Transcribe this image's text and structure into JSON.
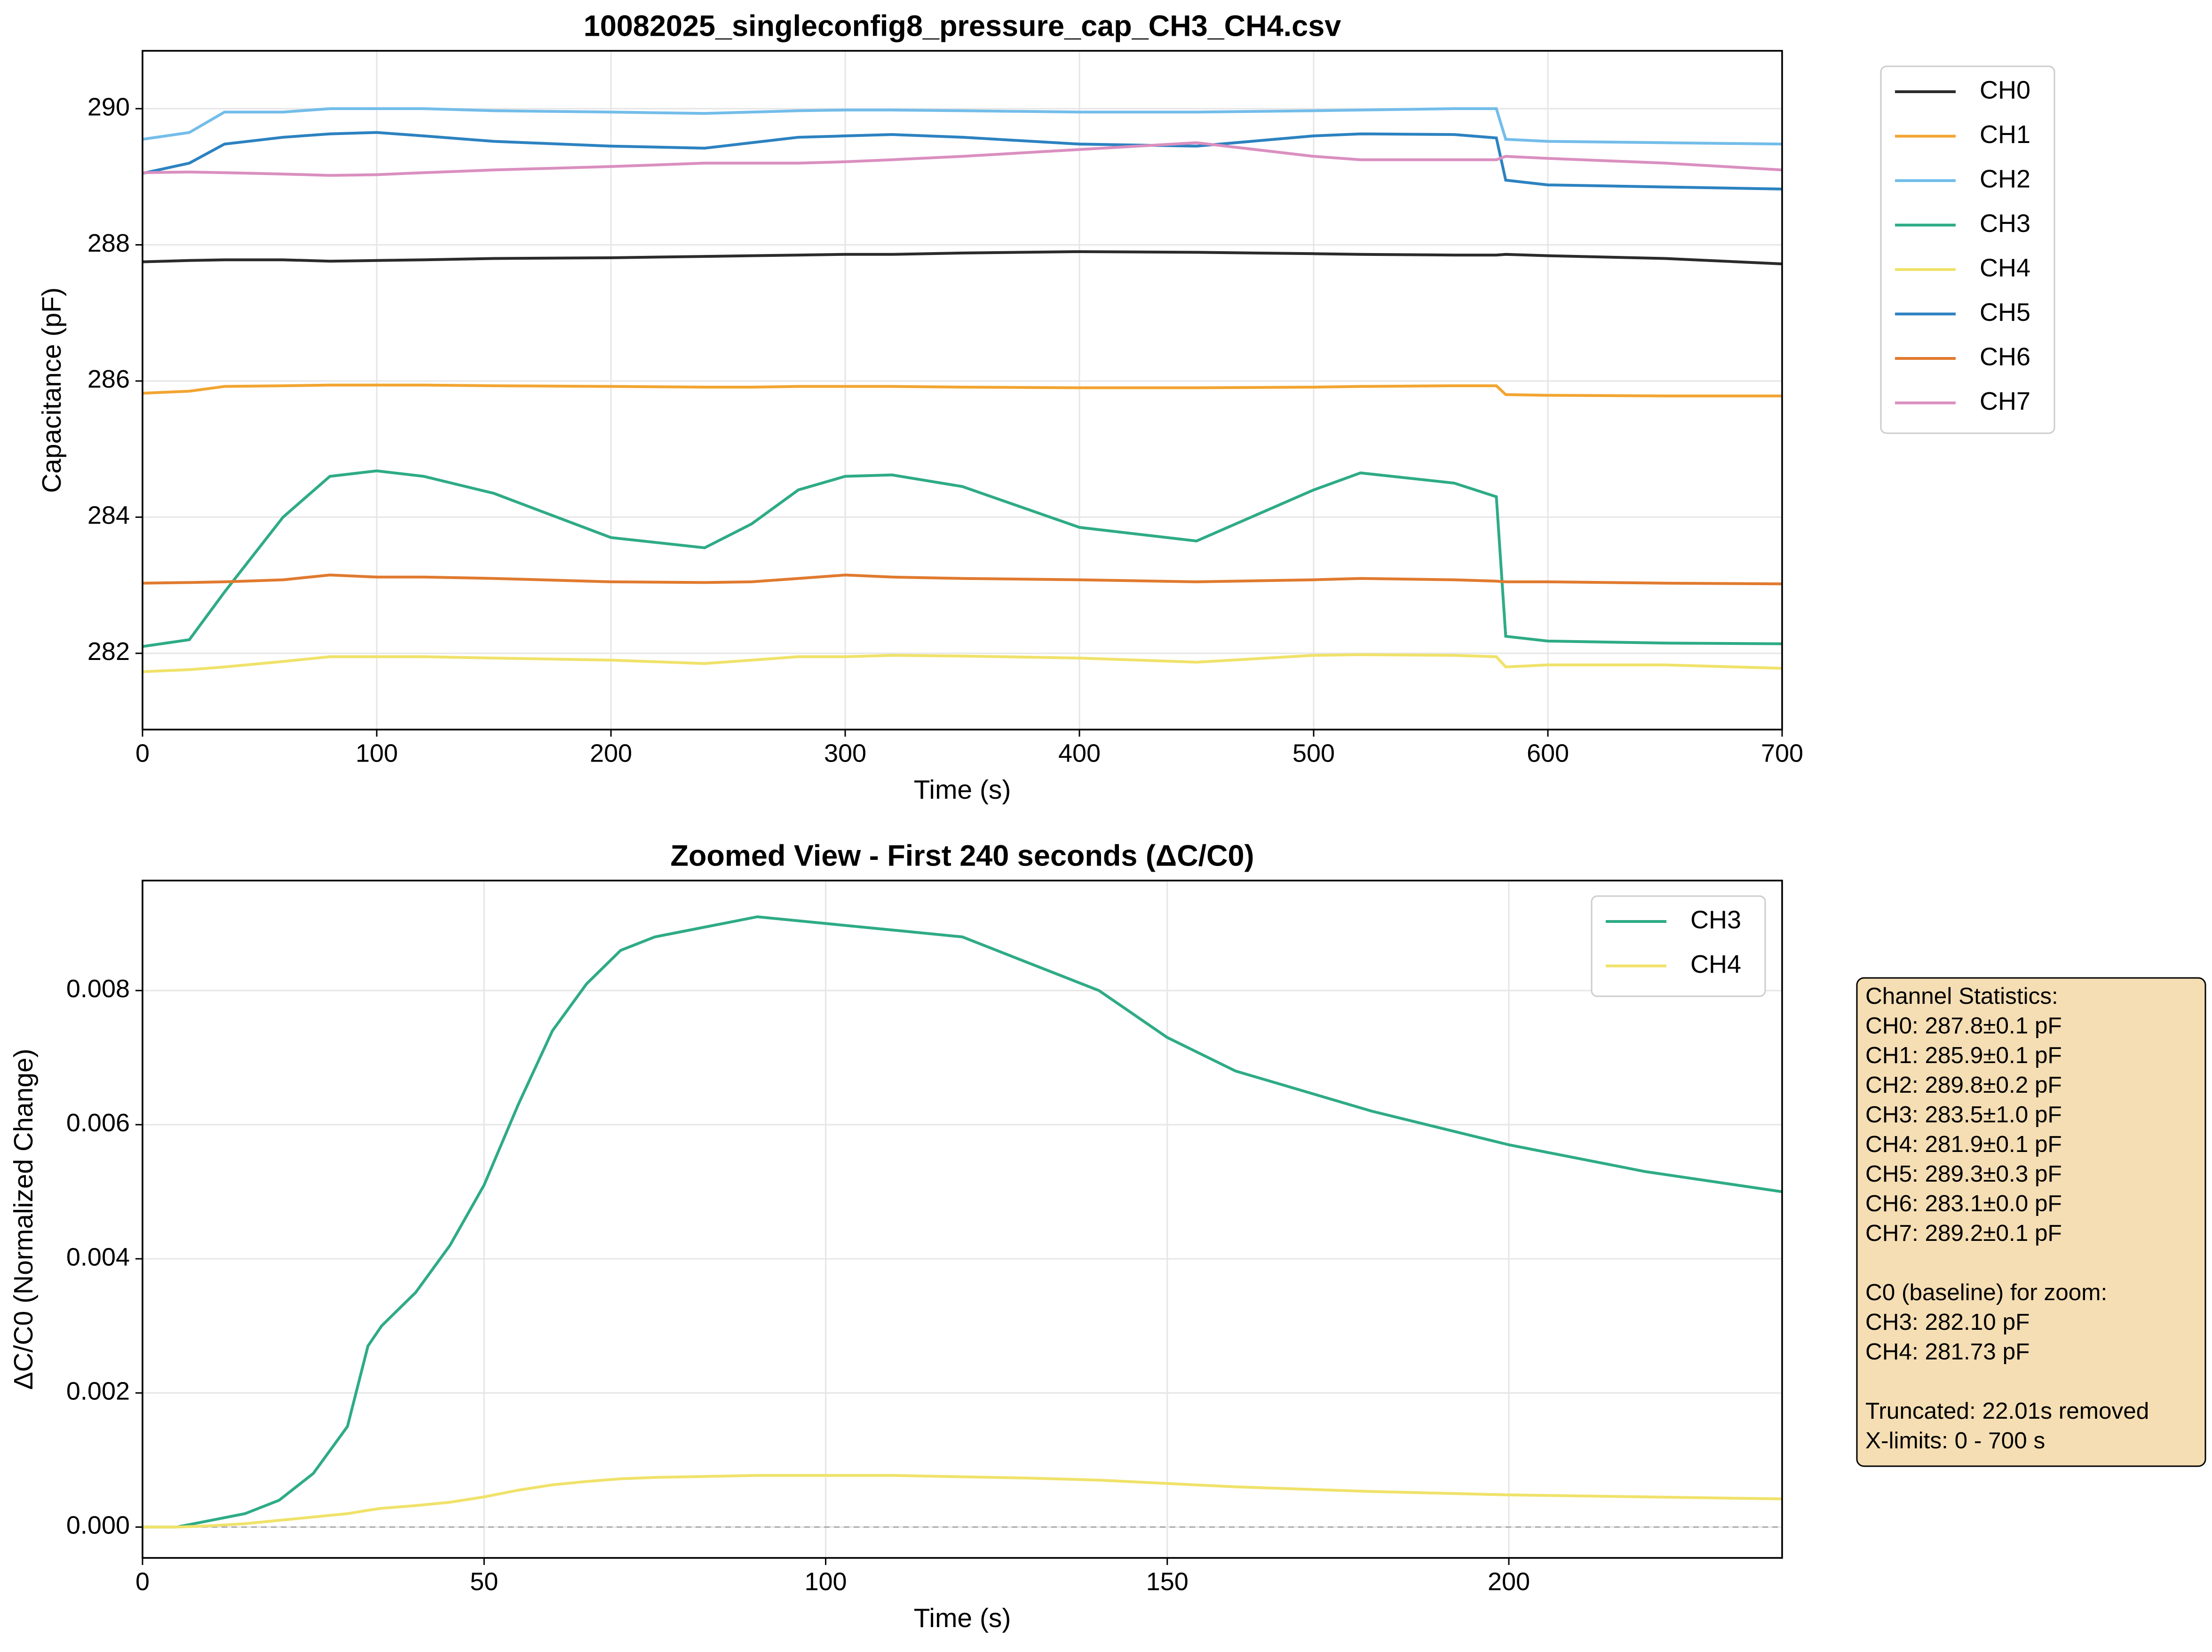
{
  "chart_data": [
    {
      "type": "line",
      "title": "10082025_singleconfig8_pressure_cap_CH3_CH4.csv",
      "xlabel": "Time (s)",
      "ylabel": "Capacitance (pF)",
      "x": [
        0,
        20,
        35,
        60,
        80,
        100,
        120,
        150,
        200,
        240,
        260,
        280,
        300,
        320,
        350,
        400,
        450,
        500,
        520,
        560,
        578,
        582,
        600,
        650,
        700
      ],
      "xlim": [
        0,
        700
      ],
      "xticks": [
        0,
        100,
        200,
        300,
        400,
        500,
        600,
        700
      ],
      "ylim": [
        280.88,
        290.85
      ],
      "yticks": [
        282,
        284,
        286,
        288,
        290
      ],
      "grid": true,
      "legend": "outside upper right",
      "series": [
        {
          "name": "CH0",
          "color": "#2b2b2b",
          "values": [
            287.75,
            287.77,
            287.78,
            287.78,
            287.76,
            287.77,
            287.78,
            287.8,
            287.81,
            287.83,
            287.84,
            287.85,
            287.86,
            287.86,
            287.88,
            287.9,
            287.89,
            287.87,
            287.86,
            287.85,
            287.85,
            287.86,
            287.84,
            287.8,
            287.72
          ]
        },
        {
          "name": "CH1",
          "color": "#f2a531",
          "values": [
            285.82,
            285.85,
            285.92,
            285.93,
            285.94,
            285.94,
            285.94,
            285.93,
            285.92,
            285.91,
            285.91,
            285.92,
            285.92,
            285.92,
            285.91,
            285.9,
            285.9,
            285.91,
            285.92,
            285.93,
            285.93,
            285.8,
            285.79,
            285.78,
            285.78
          ]
        },
        {
          "name": "CH2",
          "color": "#73bdea",
          "values": [
            289.55,
            289.65,
            289.95,
            289.95,
            290.0,
            290.0,
            290.0,
            289.97,
            289.95,
            289.93,
            289.95,
            289.97,
            289.98,
            289.98,
            289.97,
            289.95,
            289.95,
            289.97,
            289.98,
            290.0,
            290.0,
            289.55,
            289.52,
            289.5,
            289.48
          ]
        },
        {
          "name": "CH3",
          "color": "#2eab86",
          "values": [
            282.1,
            282.2,
            282.9,
            284.0,
            284.6,
            284.68,
            284.6,
            284.35,
            283.7,
            283.55,
            283.9,
            284.4,
            284.6,
            284.62,
            284.45,
            283.85,
            283.65,
            284.4,
            284.65,
            284.5,
            284.3,
            282.25,
            282.18,
            282.15,
            282.14
          ]
        },
        {
          "name": "CH4",
          "color": "#f0e26a",
          "values": [
            281.73,
            281.76,
            281.8,
            281.88,
            281.95,
            281.95,
            281.95,
            281.93,
            281.9,
            281.85,
            281.9,
            281.95,
            281.95,
            281.97,
            281.96,
            281.93,
            281.87,
            281.97,
            281.98,
            281.97,
            281.95,
            281.8,
            281.83,
            281.83,
            281.78
          ]
        },
        {
          "name": "CH5",
          "color": "#2c82c0",
          "values": [
            289.05,
            289.2,
            289.48,
            289.58,
            289.63,
            289.65,
            289.6,
            289.52,
            289.45,
            289.42,
            289.5,
            289.58,
            289.6,
            289.62,
            289.58,
            289.48,
            289.45,
            289.6,
            289.63,
            289.62,
            289.57,
            288.95,
            288.88,
            288.85,
            288.82
          ]
        },
        {
          "name": "CH6",
          "color": "#e07a2f",
          "values": [
            283.03,
            283.04,
            283.05,
            283.08,
            283.15,
            283.12,
            283.12,
            283.1,
            283.05,
            283.04,
            283.05,
            283.1,
            283.15,
            283.12,
            283.1,
            283.08,
            283.05,
            283.08,
            283.1,
            283.08,
            283.06,
            283.05,
            283.05,
            283.03,
            283.02
          ]
        },
        {
          "name": "CH7",
          "color": "#da8fc0",
          "values": [
            289.06,
            289.07,
            289.06,
            289.04,
            289.02,
            289.03,
            289.06,
            289.1,
            289.15,
            289.2,
            289.2,
            289.2,
            289.22,
            289.25,
            289.3,
            289.4,
            289.5,
            289.3,
            289.25,
            289.25,
            289.25,
            289.3,
            289.27,
            289.2,
            289.1
          ]
        }
      ]
    },
    {
      "type": "line",
      "title": "Zoomed View - First 240 seconds (ΔC/C0)",
      "xlabel": "Time (s)",
      "ylabel": "ΔC/C0 (Normalized Change)",
      "x": [
        0,
        5,
        10,
        15,
        20,
        25,
        30,
        33,
        35,
        40,
        45,
        50,
        55,
        60,
        65,
        70,
        75,
        80,
        90,
        100,
        110,
        120,
        130,
        140,
        150,
        160,
        180,
        200,
        220,
        240
      ],
      "xlim": [
        0,
        240
      ],
      "xticks": [
        0,
        50,
        100,
        150,
        200
      ],
      "ylim": [
        -0.00046,
        0.00964
      ],
      "yticks": [
        {
          "value": 0,
          "label": "0.000"
        },
        {
          "value": 0.002,
          "label": "0.002"
        },
        {
          "value": 0.004,
          "label": "0.004"
        },
        {
          "value": 0.006,
          "label": "0.006"
        },
        {
          "value": 0.008,
          "label": "0.008"
        }
      ],
      "grid": true,
      "legend": "upper right",
      "reference_line": 0,
      "series": [
        {
          "name": "CH3",
          "color": "#2eab86",
          "values": [
            0,
            0,
            0.0001,
            0.0002,
            0.0004,
            0.0008,
            0.0015,
            0.0027,
            0.003,
            0.0035,
            0.0042,
            0.0051,
            0.0063,
            0.0074,
            0.0081,
            0.0086,
            0.0088,
            0.0089,
            0.0091,
            0.009,
            0.0089,
            0.0088,
            0.0084,
            0.008,
            0.0073,
            0.0068,
            0.0062,
            0.0057,
            0.0053,
            0.005
          ]
        },
        {
          "name": "CH4",
          "color": "#f0e26a",
          "values": [
            0,
            0,
            2e-05,
            5e-05,
            0.0001,
            0.00015,
            0.0002,
            0.00025,
            0.00028,
            0.00032,
            0.00037,
            0.00045,
            0.00055,
            0.00063,
            0.00068,
            0.00072,
            0.00074,
            0.00075,
            0.00077,
            0.00077,
            0.00077,
            0.00075,
            0.00073,
            0.0007,
            0.00065,
            0.0006,
            0.00053,
            0.00048,
            0.00045,
            0.00042
          ]
        }
      ],
      "annotation": [
        [
          "Channel Statistics:",
          "CH0: 287.8±0.1 pF",
          "CH1: 285.9±0.1 pF",
          "CH2: 289.8±0.2 pF",
          "CH3: 283.5±1.0 pF",
          "CH4: 281.9±0.1 pF",
          "CH5: 289.3±0.3 pF",
          "CH6: 283.1±0.0 pF",
          "CH7: 289.2±0.1 pF"
        ],
        [
          "C0 (baseline) for zoom:",
          "CH3: 282.10 pF",
          "CH4: 281.73 pF"
        ],
        [
          "Truncated: 22.01s removed",
          "X-limits: 0 - 700 s"
        ]
      ]
    }
  ]
}
